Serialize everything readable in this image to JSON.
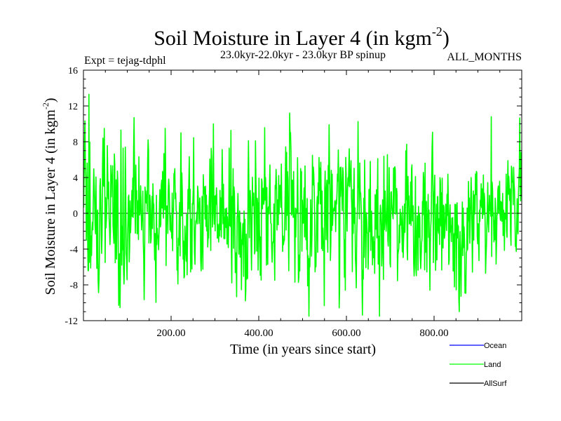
{
  "chart_data": {
    "type": "line",
    "title_main": "Soil Moisture in Layer 4 (in kgm",
    "title_sup": "-2",
    "title_close": ")",
    "subtitle_left": "Expt = tejag-tdphl",
    "subtitle_center": "23.0kyr-22.0kyr - 23.0kyr BP spinup",
    "subtitle_right": "ALL_MONTHS",
    "xlabel": "Time (in years since start)",
    "ylabel_main": "Soil Moisture in Layer 4 (in kgm",
    "ylabel_sup": "-2",
    "ylabel_close": ")",
    "xlim": [
      0,
      1000
    ],
    "ylim": [
      -12,
      16
    ],
    "x_ticks": [
      200,
      400,
      600,
      800
    ],
    "x_tick_labels": [
      "200.00",
      "400.00",
      "600.00",
      "800.00"
    ],
    "y_ticks": [
      -12,
      -8,
      -4,
      0,
      4,
      8,
      12,
      16
    ],
    "y_tick_labels": [
      "-12",
      "-8",
      "-4",
      "0",
      "4",
      "8",
      "12",
      "16"
    ],
    "zero_line": true,
    "series": [
      {
        "name": "Ocean",
        "color": "#0000ff",
        "values": []
      },
      {
        "name": "Land",
        "color": "#00ff00",
        "n_points": 1000,
        "std": 4.0,
        "min": -11.5,
        "max": 13.3,
        "seed": 73,
        "peaks": [
          [
            12,
            13.3
          ],
          [
            47,
            9.5
          ],
          [
            85,
            9.3
          ],
          [
            186,
            9.5
          ],
          [
            222,
            9.0
          ],
          [
            296,
            10.0
          ],
          [
            470,
            11.2
          ],
          [
            560,
            9.9
          ],
          [
            675,
            -11.5
          ],
          [
            930,
            10.8
          ]
        ]
      },
      {
        "name": "AllSurf",
        "color": "#000000",
        "values": []
      }
    ],
    "legend": [
      {
        "label": "Ocean",
        "color": "#0000ff"
      },
      {
        "label": "Land",
        "color": "#00ff00"
      },
      {
        "label": "AllSurf",
        "color": "#000000"
      }
    ]
  }
}
